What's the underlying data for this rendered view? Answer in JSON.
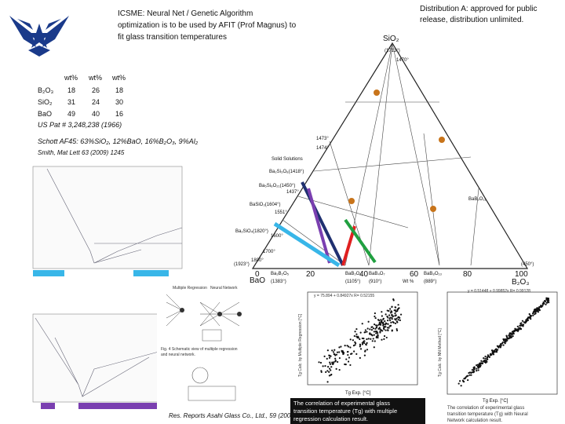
{
  "header": {
    "title_lines": [
      "ICSME:  Neural Net / Genetic Algorithm",
      "optimization is to be used by AFIT (Prof Magnus) to",
      "fit glass transition temperatures"
    ],
    "distribution_lines": [
      "Distribution A: approved for public",
      "release, distribution unlimited."
    ]
  },
  "table": {
    "header": [
      "wt%",
      "wt%",
      "wt%"
    ],
    "rows": [
      [
        "B₂O₃",
        "18",
        "26",
        "18"
      ],
      [
        "SiO₂",
        "31",
        "24",
        "30"
      ],
      [
        "BaO",
        "49",
        "40",
        "16"
      ]
    ]
  },
  "notes": {
    "patent": "US Pat # 3,248,238 (1966)",
    "schott": "Schott AF45:  63%SiO₂, 12%BaO, 16%B₂O₃, 9%Al₂",
    "smith": "Smith, Mat Lett 63 (2009) 1245",
    "asahi": "Res. Reports Asahi Glass Co., Ltd., 59  (2009)"
  },
  "ternary": {
    "apex": "SiO₂",
    "apex_temp": "(1713°)",
    "apex_temp2": "1470°",
    "left": "BaO",
    "left_temp": "(1923°)",
    "right": "B₂O₃",
    "right_temp": "(450°)",
    "axis_ticks": [
      "0",
      "20",
      "40",
      "60",
      "80",
      "100"
    ],
    "axis_label": "Wt %",
    "compounds": [
      {
        "name": "Ba₂B₂O₅",
        "temp": "(1383°)"
      },
      {
        "name": "BaB₂O₄",
        "temp": "(1105°)"
      },
      {
        "name": "BaB₄O₇",
        "temp": "(910°)"
      },
      {
        "name": "BaB₈O₁₃",
        "temp": "(889°)"
      }
    ],
    "phases": [
      "Solid Solutions",
      "Ba₂Si₃O₈(1418°)",
      "Ba₅Si₈O₂₁(1450°)",
      "BaSiO₃(1604°)",
      "Ba₂SiO₄(1820°)",
      "BaB₂O₁₁"
    ],
    "temps": [
      "1473°",
      "1474°",
      "1437°",
      "1551°",
      "1600°",
      "1700°",
      "1800°"
    ]
  },
  "network": {
    "labels": [
      "Multiple Regression",
      "Neural Network"
    ],
    "caption_lines": [
      "Fig. 4  Schematic view of multiple regression",
      "and neural network."
    ]
  },
  "scatter_left": {
    "equation": "y = 75.894 + 0.84927x  R= 0.52155",
    "x_label": "Tg Exp. [°C]",
    "y_label": "Tg Calc. by Multiple Regression [°C]",
    "caption_lines": [
      "The correlation of experimental glass",
      "transition temperature (Tg) with multiple",
      "regression calculation result."
    ]
  },
  "scatter_right": {
    "equation": "y = 0.51448 + 0.99852x  R= 0.99128",
    "x_label": "Tg Exp. [°C]",
    "y_label": "Tg Calc. by NN Method [°C]",
    "caption_lines": [
      "The correlation of experimental glass",
      "transition temperature (Tg) with Neural",
      "Network calculation result."
    ]
  }
}
